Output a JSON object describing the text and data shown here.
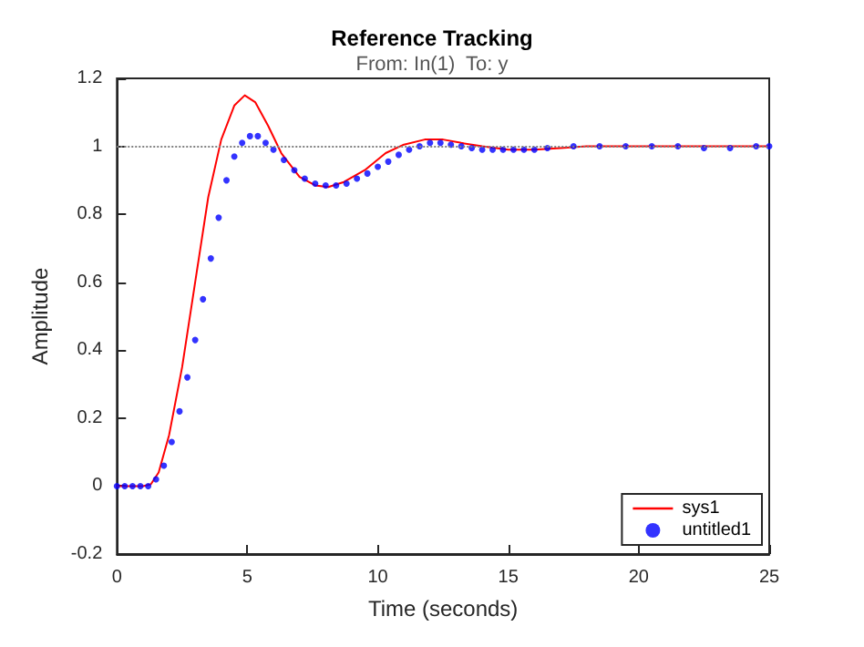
{
  "chart_data": {
    "type": "line",
    "title": "Reference Tracking",
    "subtitle": "From: In(1)  To: y",
    "xlabel": "Time (seconds)",
    "ylabel": "Amplitude",
    "xlim": [
      0,
      25
    ],
    "xticks": [
      0,
      5,
      10,
      15,
      20,
      25
    ],
    "ylim": [
      -0.2,
      1.2
    ],
    "yticks": [
      -0.2,
      0,
      0.2,
      0.4,
      0.6,
      0.8,
      1,
      1.2
    ],
    "grid": false,
    "legend": "bottom right",
    "ref_lines": [
      {
        "axis": "y",
        "value": 1,
        "color": "#808080",
        "line_style": "dotted"
      }
    ],
    "series": [
      {
        "name": "sys1",
        "color": "#ff0000",
        "line_style": "solid",
        "marker": "none",
        "x": [
          0,
          1,
          1.3,
          1.6,
          2,
          2.5,
          3,
          3.5,
          4,
          4.5,
          4.9,
          5.3,
          5.8,
          6.3,
          7,
          7.6,
          8.1,
          8.7,
          9.5,
          10.3,
          11,
          11.8,
          12.5,
          13.2,
          14,
          15,
          16,
          17,
          18,
          20,
          22,
          25
        ],
        "values": [
          0,
          0,
          0.005,
          0.04,
          0.15,
          0.35,
          0.6,
          0.85,
          1.02,
          1.12,
          1.15,
          1.13,
          1.06,
          0.98,
          0.91,
          0.885,
          0.88,
          0.895,
          0.93,
          0.98,
          1.005,
          1.02,
          1.02,
          1.01,
          1,
          0.99,
          0.99,
          0.995,
          1,
          1,
          1,
          1
        ]
      },
      {
        "name": "untitled1",
        "type": "scatter",
        "color": "#0000ff",
        "marker": "circle",
        "x": [
          0,
          0.3,
          0.6,
          0.9,
          1.2,
          1.5,
          1.8,
          2.1,
          2.4,
          2.7,
          3,
          3.3,
          3.6,
          3.9,
          4.2,
          4.5,
          4.8,
          5.1,
          5.4,
          5.7,
          6,
          6.4,
          6.8,
          7.2,
          7.6,
          8,
          8.4,
          8.8,
          9.2,
          9.6,
          10,
          10.4,
          10.8,
          11.2,
          11.6,
          12,
          12.4,
          12.8,
          13.2,
          13.6,
          14,
          14.4,
          14.8,
          15.2,
          15.6,
          16,
          16.5,
          17.5,
          18.5,
          19.5,
          20.5,
          21.5,
          22.5,
          23.5,
          24.5,
          25
        ],
        "values": [
          0,
          0,
          0,
          0,
          0,
          0.02,
          0.06,
          0.13,
          0.22,
          0.32,
          0.43,
          0.55,
          0.67,
          0.79,
          0.9,
          0.97,
          1.01,
          1.03,
          1.03,
          1.01,
          0.99,
          0.96,
          0.93,
          0.905,
          0.89,
          0.885,
          0.885,
          0.89,
          0.905,
          0.92,
          0.94,
          0.955,
          0.975,
          0.99,
          1,
          1.01,
          1.01,
          1.005,
          1,
          0.995,
          0.99,
          0.99,
          0.99,
          0.99,
          0.99,
          0.99,
          0.995,
          1,
          1,
          1,
          1,
          1,
          0.995,
          0.995,
          1,
          1
        ]
      }
    ]
  }
}
